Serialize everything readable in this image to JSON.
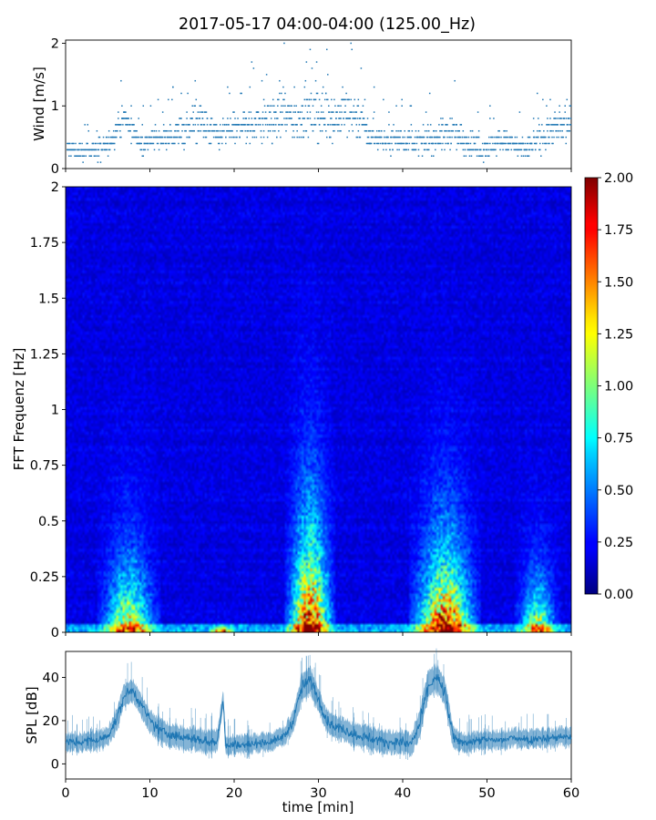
{
  "title": "2017-05-17 04:00-04:00 (125.00_Hz)",
  "colors": {
    "series": "#1f77b4",
    "axis": "#000000",
    "background": "#ffffff"
  },
  "chart_data": [
    {
      "id": "wind",
      "type": "scatter",
      "ylabel": "Wind [m/s]",
      "xlim": [
        0,
        60
      ],
      "ylim": [
        0,
        2.05
      ],
      "xticks": [
        0,
        10,
        20,
        30,
        40,
        50,
        60
      ],
      "yticks": [
        0,
        1,
        2
      ],
      "ytick_labels": [
        "0",
        "1",
        "2"
      ],
      "resolution_ms": 0.1,
      "x": [
        0,
        1,
        2,
        3,
        4,
        5,
        6,
        7,
        8,
        9,
        10,
        11,
        12,
        13,
        14,
        15,
        16,
        17,
        18,
        19,
        20,
        21,
        22,
        23,
        24,
        25,
        26,
        27,
        28,
        29,
        30,
        31,
        32,
        33,
        34,
        35,
        36,
        37,
        38,
        39,
        40,
        41,
        42,
        43,
        44,
        45,
        46,
        47,
        48,
        49,
        50,
        51,
        52,
        53,
        54,
        55,
        56,
        57,
        58,
        59,
        60
      ],
      "y": [
        0.3,
        0.3,
        0.25,
        0.3,
        0.3,
        0.35,
        0.6,
        0.8,
        0.6,
        0.4,
        0.45,
        0.5,
        0.5,
        0.55,
        0.6,
        0.7,
        0.75,
        0.6,
        0.5,
        0.6,
        0.6,
        0.7,
        0.7,
        0.75,
        0.75,
        0.8,
        0.85,
        0.8,
        0.85,
        0.85,
        0.85,
        0.9,
        0.8,
        0.9,
        0.85,
        0.85,
        0.5,
        0.5,
        0.45,
        0.5,
        0.45,
        0.45,
        0.4,
        0.45,
        0.5,
        0.55,
        0.6,
        0.45,
        0.4,
        0.3,
        0.35,
        0.4,
        0.45,
        0.4,
        0.3,
        0.35,
        0.45,
        0.55,
        0.65,
        0.65,
        0.7
      ],
      "spread": [
        0.2,
        0.2,
        0.2,
        0.2,
        0.25,
        0.3,
        0.3,
        0.35,
        0.3,
        0.25,
        0.3,
        0.3,
        0.3,
        0.3,
        0.4,
        0.45,
        0.5,
        0.45,
        0.35,
        0.4,
        0.4,
        0.45,
        0.5,
        0.5,
        0.55,
        0.6,
        0.6,
        0.6,
        0.6,
        0.6,
        0.65,
        0.65,
        0.6,
        0.65,
        0.6,
        0.6,
        0.35,
        0.3,
        0.3,
        0.3,
        0.3,
        0.3,
        0.3,
        0.3,
        0.35,
        0.4,
        0.4,
        0.35,
        0.3,
        0.3,
        0.3,
        0.3,
        0.3,
        0.3,
        0.3,
        0.3,
        0.35,
        0.4,
        0.45,
        0.5,
        0.5
      ]
    },
    {
      "id": "spectrogram",
      "type": "heatmap",
      "ylabel": "FFT Frequenz [Hz]",
      "xlim": [
        0,
        60
      ],
      "ylim": [
        0,
        2
      ],
      "xticks": [
        0,
        10,
        20,
        30,
        40,
        50,
        60
      ],
      "yticks": [
        0,
        0.25,
        0.5,
        0.75,
        1,
        1.25,
        1.5,
        1.75,
        2
      ],
      "ytick_labels": [
        "0",
        "0.25",
        "0.5",
        "0.75",
        "1",
        "1.25",
        "1.5",
        "1.75",
        "2"
      ],
      "colormap": "jet",
      "clim": [
        0,
        2
      ],
      "colorbar_ticks": [
        "0.00",
        "0.25",
        "0.50",
        "0.75",
        "1.00",
        "1.25",
        "1.50",
        "1.75",
        "2.00"
      ],
      "n_time_bins": 240,
      "n_freq_bins": 160,
      "hotspots": [
        {
          "t_center": 7.5,
          "t_halfwidth": 3.3,
          "f_extent": 0.65,
          "peak": 1.5
        },
        {
          "t_center": 18.5,
          "t_halfwidth": 1.4,
          "f_extent": 0.04,
          "peak": 2.2
        },
        {
          "t_center": 29,
          "t_halfwidth": 2.6,
          "f_extent": 1.0,
          "peak": 2.2
        },
        {
          "t_center": 45,
          "t_halfwidth": 3.7,
          "f_extent": 0.8,
          "peak": 2.1
        },
        {
          "t_center": 56,
          "t_halfwidth": 2.3,
          "f_extent": 0.5,
          "peak": 1.4
        }
      ]
    },
    {
      "id": "spl",
      "type": "line",
      "ylabel": "SPL [dB]",
      "xlabel": "time [min]",
      "xlim": [
        0,
        60
      ],
      "ylim": [
        -7,
        52
      ],
      "xticks": [
        0,
        10,
        20,
        30,
        40,
        50,
        60
      ],
      "xtick_labels": [
        "0",
        "10",
        "20",
        "30",
        "40",
        "50",
        "60"
      ],
      "yticks": [
        0,
        20,
        40
      ],
      "ytick_labels": [
        "0",
        "20",
        "40"
      ],
      "x": [
        0,
        1,
        2,
        3,
        4,
        5,
        6,
        7,
        8,
        9,
        10,
        11,
        12,
        13,
        14,
        15,
        16,
        17,
        18,
        18.7,
        19,
        20,
        21,
        22,
        23,
        24,
        25,
        26,
        27,
        28,
        29,
        30,
        31,
        32,
        33,
        34,
        35,
        36,
        37,
        38,
        39,
        40,
        41,
        42,
        43,
        44,
        45,
        46,
        47,
        48,
        49,
        50,
        51,
        52,
        53,
        54,
        55,
        56,
        57,
        58,
        59,
        60
      ],
      "y": [
        10,
        10,
        10,
        11,
        11,
        13,
        20,
        32,
        34,
        27,
        20,
        16,
        14,
        13,
        12,
        12,
        11,
        10,
        11,
        30,
        8,
        9,
        9,
        9,
        10,
        10,
        11,
        13,
        20,
        35,
        39,
        30,
        20,
        17,
        16,
        14,
        13,
        12,
        11,
        10,
        10,
        10,
        9,
        18,
        36,
        40,
        33,
        12,
        10,
        10,
        11,
        11,
        11,
        11,
        12,
        12,
        11,
        12,
        12,
        12,
        13,
        12
      ],
      "band_halfwidth": [
        4,
        4,
        4,
        4,
        4,
        4,
        5,
        5,
        5,
        5,
        5,
        5,
        5,
        5,
        5,
        5,
        5,
        5,
        5,
        4,
        4,
        4,
        4,
        4,
        4,
        4,
        4,
        4,
        5,
        6,
        6,
        5,
        5,
        5,
        5,
        5,
        5,
        5,
        5,
        5,
        5,
        5,
        5,
        6,
        6,
        6,
        6,
        5,
        4,
        4,
        4,
        4,
        4,
        4,
        4,
        4,
        4,
        4,
        4,
        4,
        4,
        4
      ]
    }
  ]
}
